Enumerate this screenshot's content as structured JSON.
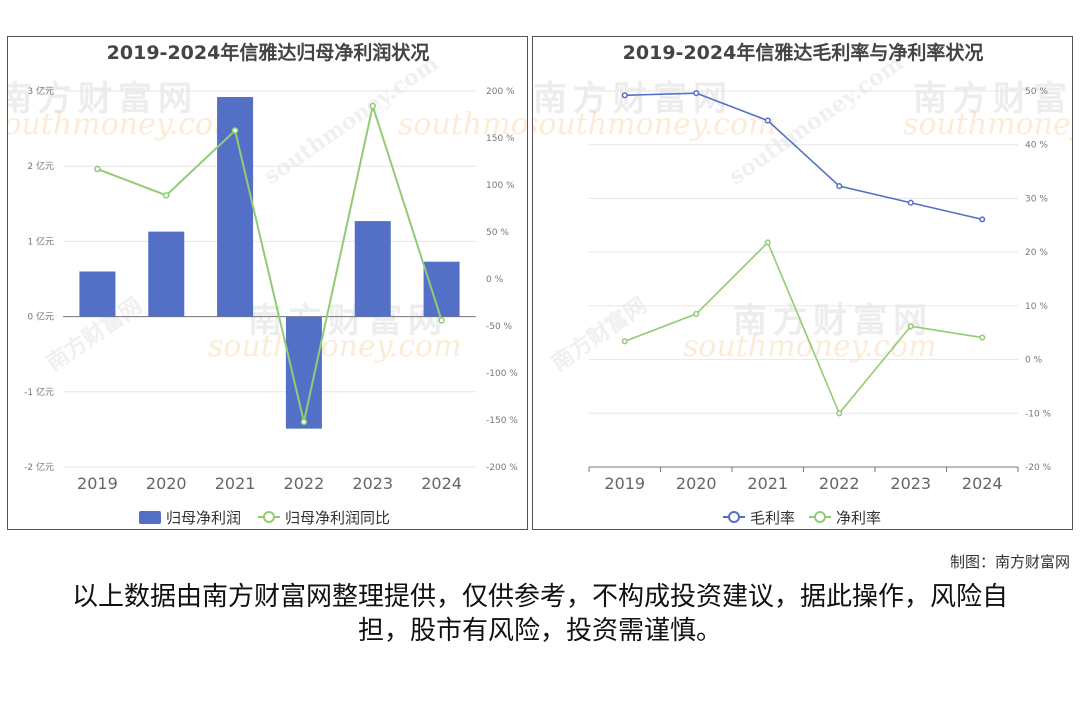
{
  "chart_data": [
    {
      "type": "bar",
      "title": "2019-2024年信雅达归母净利润状况",
      "categories": [
        "2019",
        "2020",
        "2021",
        "2022",
        "2023",
        "2024"
      ],
      "series": [
        {
          "name": "归母净利润",
          "type": "bar",
          "axis": "left",
          "values": [
            0.6,
            1.13,
            2.92,
            -1.49,
            1.27,
            0.73
          ],
          "color": "#5470c6"
        },
        {
          "name": "归母净利润同比",
          "type": "line",
          "axis": "right",
          "values": [
            117,
            89,
            158,
            -152,
            184,
            -44
          ],
          "color": "#91cc75"
        }
      ],
      "y_left": {
        "min": -2,
        "max": 3,
        "ticks": [
          "3 亿元",
          "2 亿元",
          "1 亿元",
          "0 亿元",
          "-1 亿元",
          "-2 亿元"
        ]
      },
      "y_right": {
        "min": -200,
        "max": 200,
        "ticks": [
          "200 %",
          "150 %",
          "100 %",
          "50 %",
          "0 %",
          "-50 %",
          "-100 %",
          "-150 %",
          "-200 %"
        ]
      },
      "grid": true,
      "legend_position": "bottom"
    },
    {
      "type": "line",
      "title": "2019-2024年信雅达毛利率与净利率状况",
      "categories": [
        "2019",
        "2020",
        "2021",
        "2022",
        "2023",
        "2024"
      ],
      "series": [
        {
          "name": "毛利率",
          "values": [
            49.2,
            49.6,
            44.5,
            32.3,
            29.2,
            26.1
          ],
          "color": "#5470c6"
        },
        {
          "name": "净利率",
          "values": [
            3.4,
            8.5,
            21.8,
            -10.0,
            6.2,
            4.1
          ],
          "color": "#91cc75"
        }
      ],
      "y_right": {
        "min": -20,
        "max": 50,
        "ticks": [
          "50 %",
          "40 %",
          "30 %",
          "20 %",
          "10 %",
          "0 %",
          "-10 %",
          "-20 %"
        ]
      },
      "grid": true,
      "legend_position": "bottom"
    }
  ],
  "watermark": {
    "name": "南方财富网",
    "url": "southmoney.com"
  },
  "credit": "制图：南方财富网",
  "disclaimer": "以上数据由南方财富网整理提供，仅供参考，不构成投资建议，据此操作，风险自担，股市有风险，投资需谨慎。"
}
